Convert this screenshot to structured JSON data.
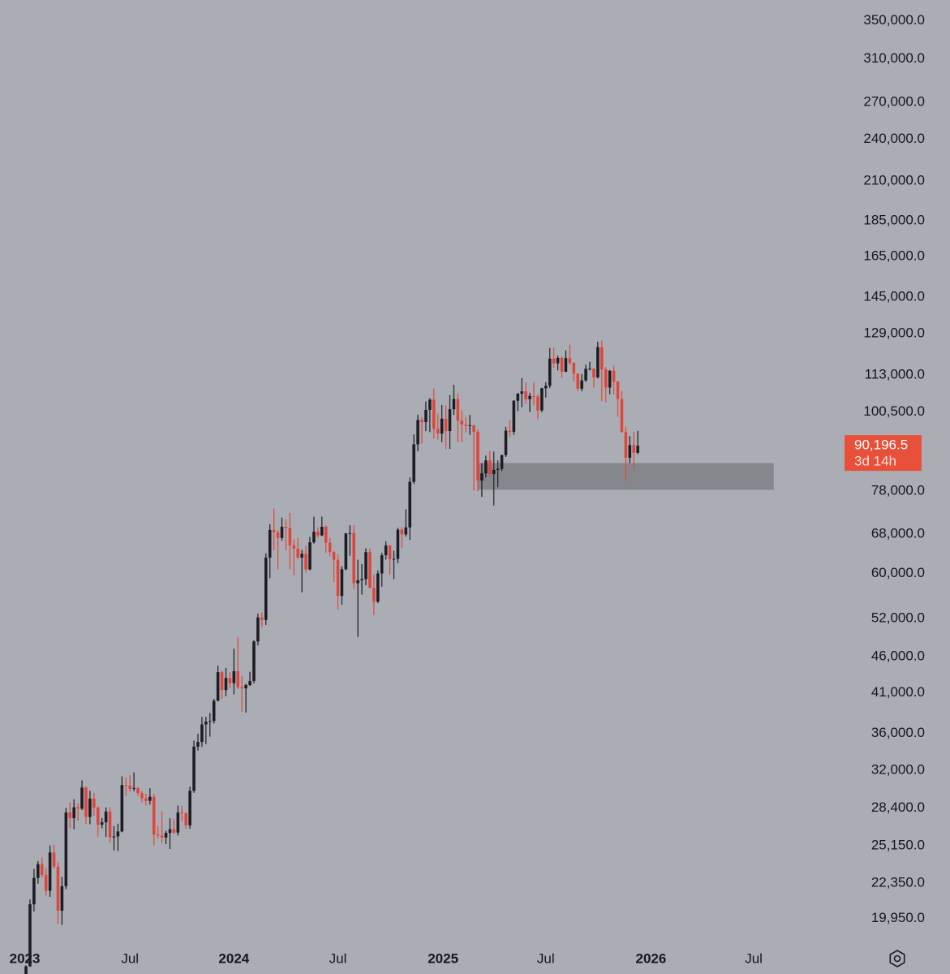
{
  "chart_data": {
    "type": "candlestick",
    "log_scale": true,
    "up_color": "#1c1c22",
    "down_color": "#e0453a",
    "zone_color": "#85878d",
    "tag_color": "#e8503a",
    "xlim": [
      -6.5,
      204.5
    ],
    "xticks": [
      {
        "value": -0.3,
        "label": "2023"
      },
      {
        "value": 26,
        "label": "Jul"
      },
      {
        "value": 52,
        "label": "2024"
      },
      {
        "value": 78,
        "label": "Jul"
      },
      {
        "value": 104.3,
        "label": "2025"
      },
      {
        "value": 130,
        "label": "Jul"
      },
      {
        "value": 156.3,
        "label": "2026"
      },
      {
        "value": 182,
        "label": "Jul"
      }
    ],
    "ylim": [
      18300,
      374000
    ],
    "yticks": [
      {
        "value": 350000,
        "label": "350,000.0"
      },
      {
        "value": 310000,
        "label": "310,000.0"
      },
      {
        "value": 270000,
        "label": "270,000.0"
      },
      {
        "value": 240000,
        "label": "240,000.0"
      },
      {
        "value": 210000,
        "label": "210,000.0"
      },
      {
        "value": 185000,
        "label": "185,000.0"
      },
      {
        "value": 165000,
        "label": "165,000.0"
      },
      {
        "value": 145000,
        "label": "145,000.0"
      },
      {
        "value": 129000,
        "label": "129,000.0"
      },
      {
        "value": 113000,
        "label": "113,000.0"
      },
      {
        "value": 100500,
        "label": "100,500.0"
      },
      {
        "value": 78000,
        "label": "78,000.0"
      },
      {
        "value": 68000,
        "label": "68,000.0"
      },
      {
        "value": 60000,
        "label": "60,000.0"
      },
      {
        "value": 52000,
        "label": "52,000.0"
      },
      {
        "value": 46000,
        "label": "46,000.0"
      },
      {
        "value": 41000,
        "label": "41,000.0"
      },
      {
        "value": 36000,
        "label": "36,000.0"
      },
      {
        "value": 32000,
        "label": "32,000.0"
      },
      {
        "value": 28400,
        "label": "28,400.0"
      },
      {
        "value": 25150,
        "label": "25,150.0"
      },
      {
        "value": 22350,
        "label": "22,350.0"
      },
      {
        "value": 19950,
        "label": "19,950.0"
      }
    ],
    "last_price": {
      "value": 90196.5,
      "label": "90,196.5"
    },
    "countdown": "3d 14h",
    "zone": {
      "start": 113,
      "end": 187,
      "low": 78350,
      "high": 85330
    },
    "candles": [
      [
        16620,
        17180,
        16500,
        17130
      ],
      [
        17130,
        21200,
        17100,
        20880
      ],
      [
        20880,
        23370,
        20400,
        22710
      ],
      [
        22710,
        23960,
        22300,
        23730
      ],
      [
        23730,
        24240,
        22750,
        22930
      ],
      [
        22930,
        23440,
        21460,
        21800
      ],
      [
        21800,
        25200,
        21380,
        24630
      ],
      [
        24630,
        25250,
        23400,
        23550
      ],
      [
        23550,
        23900,
        19600,
        20460
      ],
      [
        20460,
        22800,
        19550,
        22120
      ],
      [
        22120,
        28400,
        21900,
        27990
      ],
      [
        27990,
        28900,
        26600,
        27480
      ],
      [
        27480,
        29180,
        26540,
        28450
      ],
      [
        28450,
        28800,
        27250,
        28330
      ],
      [
        28330,
        31000,
        28200,
        30300
      ],
      [
        30300,
        30400,
        26960,
        27590
      ],
      [
        27590,
        30000,
        26950,
        29250
      ],
      [
        29250,
        29800,
        27700,
        28430
      ],
      [
        28430,
        28530,
        25900,
        26920
      ],
      [
        26920,
        27500,
        26600,
        27120
      ],
      [
        27120,
        28450,
        25880,
        28070
      ],
      [
        28070,
        28440,
        25400,
        25850
      ],
      [
        25850,
        26800,
        24800,
        25930
      ],
      [
        25930,
        27000,
        24750,
        26340
      ],
      [
        26340,
        31400,
        26270,
        30550
      ],
      [
        30550,
        31260,
        29500,
        30480
      ],
      [
        30480,
        31500,
        29900,
        30170
      ],
      [
        30170,
        31800,
        29950,
        30250
      ],
      [
        30250,
        30350,
        29500,
        29760
      ],
      [
        29760,
        29990,
        28900,
        29280
      ],
      [
        29280,
        29700,
        28600,
        29050
      ],
      [
        29050,
        30230,
        28700,
        29410
      ],
      [
        29410,
        29690,
        25170,
        26090
      ],
      [
        26090,
        26800,
        25800,
        26010
      ],
      [
        26010,
        28100,
        25400,
        25840
      ],
      [
        25840,
        26400,
        25300,
        26220
      ],
      [
        26220,
        27480,
        24900,
        26530
      ],
      [
        26530,
        27440,
        26100,
        26250
      ],
      [
        26250,
        28600,
        26000,
        27980
      ],
      [
        27980,
        28580,
        27200,
        27920
      ],
      [
        27920,
        28000,
        26550,
        26860
      ],
      [
        26860,
        30400,
        26560,
        29990
      ],
      [
        29990,
        35200,
        29800,
        34530
      ],
      [
        34530,
        35980,
        34100,
        35040
      ],
      [
        35040,
        37960,
        34500,
        37060
      ],
      [
        37060,
        37980,
        34800,
        37400
      ],
      [
        37400,
        38450,
        35650,
        37460
      ],
      [
        37460,
        40230,
        37150,
        39970
      ],
      [
        39970,
        44700,
        39900,
        43790
      ],
      [
        43790,
        44000,
        40200,
        41360
      ],
      [
        41360,
        44400,
        40550,
        43000
      ],
      [
        43000,
        43800,
        41600,
        42280
      ],
      [
        42280,
        47200,
        40800,
        43930
      ],
      [
        43930,
        49000,
        41500,
        41730
      ],
      [
        41730,
        43300,
        38600,
        41580
      ],
      [
        41580,
        42200,
        38500,
        42030
      ],
      [
        42030,
        43850,
        41880,
        42580
      ],
      [
        42580,
        48500,
        42250,
        48300
      ],
      [
        48300,
        52800,
        47700,
        52140
      ],
      [
        52140,
        52990,
        50550,
        51730
      ],
      [
        51730,
        64000,
        50900,
        63110
      ],
      [
        63110,
        70200,
        59100,
        68950
      ],
      [
        68950,
        73800,
        64600,
        68390
      ],
      [
        68390,
        68920,
        60800,
        67210
      ],
      [
        67210,
        71700,
        66600,
        69650
      ],
      [
        69650,
        71300,
        64600,
        69360
      ],
      [
        69360,
        72800,
        60800,
        65660
      ],
      [
        65660,
        66900,
        59600,
        64940
      ],
      [
        64940,
        67200,
        62800,
        63120
      ],
      [
        63120,
        64700,
        56500,
        63890
      ],
      [
        63890,
        65500,
        60200,
        60790
      ],
      [
        60790,
        67400,
        60600,
        66270
      ],
      [
        66270,
        71900,
        66000,
        68520
      ],
      [
        68520,
        69500,
        67200,
        67750
      ],
      [
        67750,
        71950,
        67600,
        69650
      ],
      [
        69650,
        70000,
        64100,
        66190
      ],
      [
        66190,
        67200,
        63400,
        64250
      ],
      [
        64250,
        64500,
        58400,
        62680
      ],
      [
        62680,
        63800,
        53500,
        55850
      ],
      [
        55850,
        61400,
        54300,
        60800
      ],
      [
        60800,
        68300,
        60600,
        68160
      ],
      [
        68160,
        69990,
        63500,
        68250
      ],
      [
        68250,
        70000,
        57100,
        58160
      ],
      [
        58160,
        62700,
        49000,
        58710
      ],
      [
        58710,
        61800,
        56100,
        58930
      ],
      [
        58930,
        65000,
        57800,
        64220
      ],
      [
        64220,
        64950,
        57200,
        57300
      ],
      [
        57300,
        59800,
        52550,
        54840
      ],
      [
        54840,
        60600,
        54600,
        60000
      ],
      [
        60000,
        64100,
        57500,
        63580
      ],
      [
        63580,
        66500,
        62700,
        65600
      ],
      [
        65600,
        65700,
        59800,
        62820
      ],
      [
        62820,
        64500,
        58900,
        62850
      ],
      [
        62850,
        69400,
        62000,
        69000
      ],
      [
        69000,
        69500,
        65000,
        67950
      ],
      [
        67950,
        73600,
        67500,
        69500
      ],
      [
        69500,
        81500,
        66800,
        80370
      ],
      [
        80370,
        93500,
        79800,
        90600
      ],
      [
        90600,
        99600,
        88600,
        97900
      ],
      [
        97900,
        98800,
        90800,
        97280
      ],
      [
        97280,
        103900,
        94500,
        101120
      ],
      [
        101120,
        105000,
        94200,
        104460
      ],
      [
        104460,
        108300,
        92200,
        95190
      ],
      [
        95190,
        99900,
        92000,
        93730
      ],
      [
        93730,
        102700,
        91200,
        98310
      ],
      [
        98310,
        102500,
        89200,
        94520
      ],
      [
        94520,
        106000,
        89300,
        101330
      ],
      [
        101330,
        109600,
        99500,
        104710
      ],
      [
        104710,
        106500,
        91200,
        97700
      ],
      [
        97700,
        101000,
        91200,
        96470
      ],
      [
        96470,
        98800,
        94100,
        96120
      ],
      [
        96120,
        99500,
        93400,
        96280
      ],
      [
        96280,
        96400,
        78200,
        94270
      ],
      [
        94270,
        95000,
        78000,
        80700
      ],
      [
        80700,
        85300,
        76600,
        82580
      ],
      [
        82580,
        87400,
        81500,
        86080
      ],
      [
        86080,
        88800,
        81600,
        82390
      ],
      [
        82390,
        88500,
        74500,
        83500
      ],
      [
        83500,
        86100,
        79000,
        83760
      ],
      [
        83760,
        87700,
        83200,
        87520
      ],
      [
        87520,
        95800,
        87000,
        94650
      ],
      [
        94650,
        97900,
        92800,
        94280
      ],
      [
        94280,
        104300,
        93400,
        104120
      ],
      [
        104120,
        106700,
        100700,
        106500
      ],
      [
        106500,
        111900,
        102000,
        107270
      ],
      [
        107270,
        110400,
        103100,
        104640
      ],
      [
        104640,
        106800,
        100400,
        105700
      ],
      [
        105700,
        110500,
        102600,
        105550
      ],
      [
        105550,
        106200,
        98200,
        100960
      ],
      [
        100960,
        108500,
        100400,
        108350
      ],
      [
        108350,
        110500,
        105200,
        109200
      ],
      [
        109200,
        123200,
        108400,
        119080
      ],
      [
        119080,
        123400,
        115700,
        117300
      ],
      [
        117300,
        120200,
        114700,
        119400
      ],
      [
        119400,
        119800,
        112000,
        114200
      ],
      [
        114200,
        122300,
        114100,
        119300
      ],
      [
        119300,
        124500,
        116800,
        117500
      ],
      [
        117500,
        117600,
        110700,
        113500
      ],
      [
        113500,
        113600,
        107300,
        108200
      ],
      [
        108200,
        113400,
        107300,
        111100
      ],
      [
        111100,
        116800,
        110600,
        115300
      ],
      [
        115300,
        117900,
        114700,
        115300
      ],
      [
        115300,
        115500,
        108600,
        112200
      ],
      [
        112200,
        125700,
        111800,
        123500
      ],
      [
        123500,
        126200,
        104000,
        115100
      ],
      [
        115100,
        116000,
        103500,
        108600
      ],
      [
        108600,
        114800,
        106300,
        114600
      ],
      [
        114600,
        116400,
        106300,
        110600
      ],
      [
        110600,
        111000,
        98900,
        104700
      ],
      [
        104700,
        107500,
        94000,
        94200
      ],
      [
        94200,
        95900,
        80600,
        86800
      ],
      [
        86800,
        93000,
        85300,
        90400
      ],
      [
        90400,
        94200,
        83800,
        88200
      ],
      [
        88200,
        94600,
        87800,
        90196.5
      ]
    ]
  }
}
